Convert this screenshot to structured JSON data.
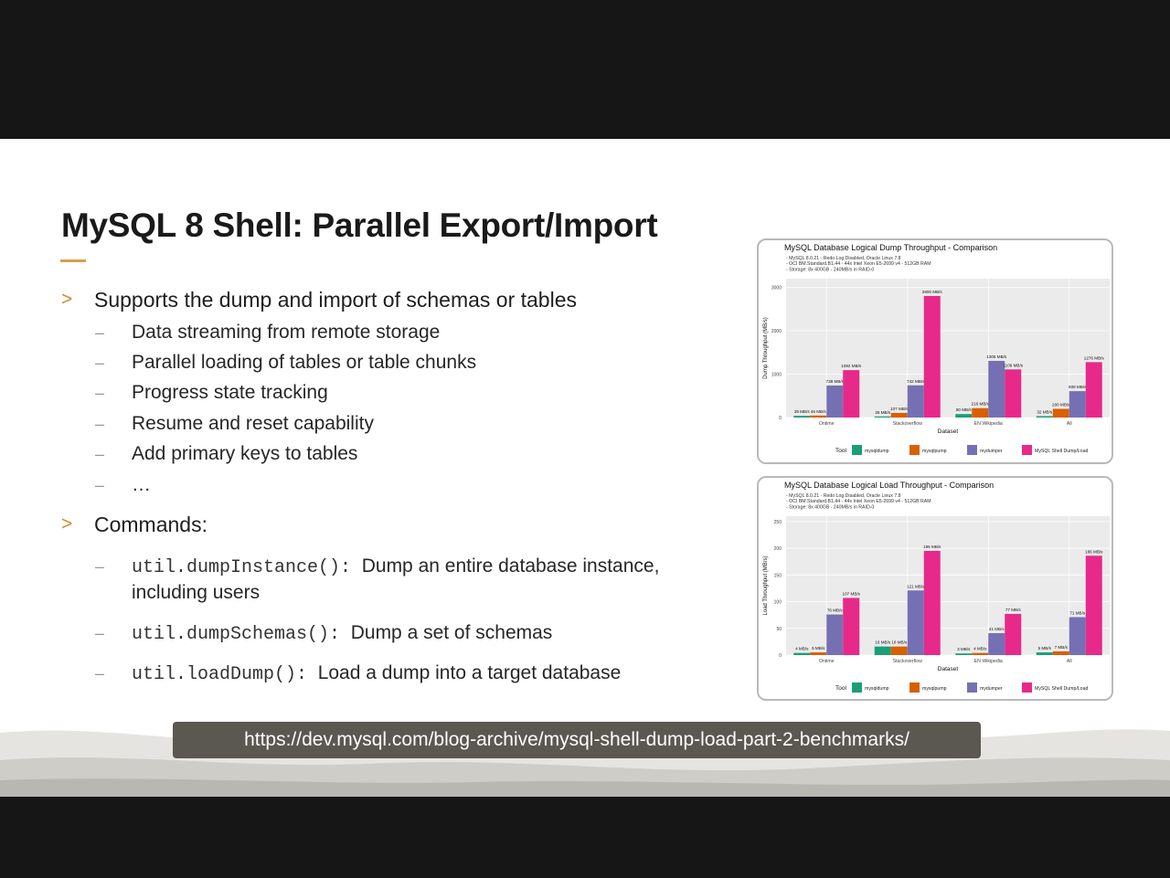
{
  "slide": {
    "title": "MySQL 8 Shell: Parallel Export/Import",
    "bullet1": "Supports the dump and import of schemas or tables",
    "sub_items": [
      "Data streaming from remote storage",
      "Parallel loading of tables or table chunks",
      "Progress state tracking",
      "Resume and reset capability",
      "Add primary keys to tables",
      "…"
    ],
    "bullet2": "Commands:",
    "commands": [
      {
        "code": "util.dumpInstance():",
        "desc": "Dump an entire database instance,",
        "desc2": "including users"
      },
      {
        "code": "util.dumpSchemas():",
        "desc": "Dump a set of schemas"
      },
      {
        "code": "util.loadDump():",
        "desc": "Load a dump into a target database"
      }
    ],
    "url": "https://dev.mysql.com/blog-archive/mysql-shell-dump-load-part-2-benchmarks/"
  },
  "colors": {
    "mysqldump": "#1b9e77",
    "mysqlpump": "#d95f02",
    "mydumper": "#7570b3",
    "shell": "#e7298a",
    "accent": "#d4a24c"
  },
  "chart_data": [
    {
      "type": "bar",
      "title": "MySQL Database Logical Dump Throughput - Comparison",
      "subtitle": [
        "- MySQL 8.0.21 - Redo Log Disabled, Oracle Linux 7.8",
        "- OCI BM.Standard.B1.44 - 44x Intel Xeon E5-2699 v4 - 512GB RAM",
        "- Storage: 8x 400GB - 240MB/s in RAID-0"
      ],
      "xlabel": "Dataset",
      "ylabel": "Dump Throughput (MB/s)",
      "ylim": [
        0,
        3200
      ],
      "yticks": [
        0,
        1000,
        2000,
        3000
      ],
      "categories": [
        "Ontime",
        "Stackoverflow",
        "EN Wikipedia",
        "All"
      ],
      "series": [
        {
          "name": "mysqldump",
          "values": [
            39,
            25,
            80,
            32
          ],
          "labels": [
            "39 MB/s",
            "25 MB/s",
            "80 MB/s",
            "32 MB/s"
          ]
        },
        {
          "name": "mysqlpump",
          "values": [
            46,
            107,
            216,
            200
          ],
          "labels": [
            "46 MB/s",
            "107 MB/s",
            "216 MB/s",
            "200 MB/s"
          ]
        },
        {
          "name": "mydumper",
          "values": [
            738,
            742,
            1305,
            608
          ],
          "labels": [
            "738 MB/s",
            "742 MB/s",
            "1305 MB/s",
            "608 MB/s"
          ]
        },
        {
          "name": "MySQL Shell Dump/Load",
          "values": [
            1092,
            2800,
            1109,
            1276
          ],
          "labels": [
            "1092 MB/s",
            "2800 MB/s",
            "1109 MB/s",
            "1276 MB/s"
          ]
        }
      ],
      "legend_title": "Tool",
      "legend_position": "bottom",
      "grid": true
    },
    {
      "type": "bar",
      "title": "MySQL Database Logical Load Throughput - Comparison",
      "subtitle": [
        "- MySQL 8.0.21 - Redo Log Disabled, Oracle Linux 7.8",
        "- OCI BM.Standard.B1.44 - 44x Intel Xeon E5-2699 v4 - 512GB RAM",
        "- Storage: 8x 400GB - 240MB/s in RAID-0"
      ],
      "xlabel": "Dataset",
      "ylabel": "Load Throughput (MB/s)",
      "ylim": [
        0,
        260
      ],
      "yticks": [
        0,
        50,
        100,
        150,
        200,
        250
      ],
      "categories": [
        "Ontime",
        "Stackoverflow",
        "EN Wikipedia",
        "All"
      ],
      "series": [
        {
          "name": "mysqldump",
          "values": [
            4,
            16,
            3,
            5
          ],
          "labels": [
            "4 MB/s",
            "16 MB/s",
            "3 MB/s",
            "5 MB/s"
          ]
        },
        {
          "name": "mysqlpump",
          "values": [
            5,
            16,
            4,
            7
          ],
          "labels": [
            "5 MB/s",
            "16 MB/s",
            "4 MB/s",
            "7 MB/s"
          ]
        },
        {
          "name": "mydumper",
          "values": [
            76,
            121,
            41,
            71
          ],
          "labels": [
            "76 MB/s",
            "121 MB/s",
            "41 MB/s",
            "71 MB/s"
          ]
        },
        {
          "name": "MySQL Shell Dump/Load",
          "values": [
            107,
            195,
            77,
            186
          ],
          "labels": [
            "107 MB/s",
            "195 MB/s",
            "77 MB/s",
            "186 MB/s"
          ]
        }
      ],
      "legend_title": "Tool",
      "legend_position": "bottom",
      "grid": true
    }
  ]
}
